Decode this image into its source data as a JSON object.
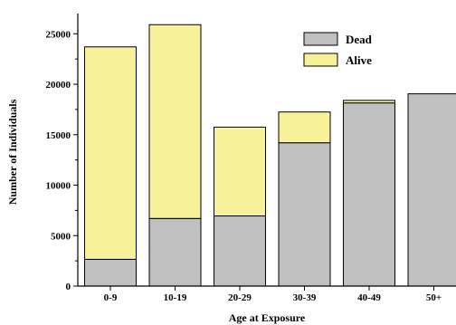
{
  "chart_data": {
    "type": "bar",
    "stacked": true,
    "categories": [
      "0-9",
      "10-19",
      "20-29",
      "30-39",
      "40-49",
      "50+"
    ],
    "series": [
      {
        "name": "Dead",
        "color": "#c0c0c0",
        "values": [
          2650,
          6700,
          6950,
          14200,
          18150,
          19050
        ]
      },
      {
        "name": "Alive",
        "color": "#f7f19a",
        "values": [
          21050,
          19200,
          8800,
          3050,
          250,
          0
        ]
      }
    ],
    "xlabel": "Age at Exposure",
    "ylabel": "Number of Individuals",
    "ylim": [
      0,
      27000
    ],
    "yticks": [
      0,
      5000,
      10000,
      15000,
      20000,
      25000
    ],
    "grid": false,
    "legend_position": "top-right"
  }
}
